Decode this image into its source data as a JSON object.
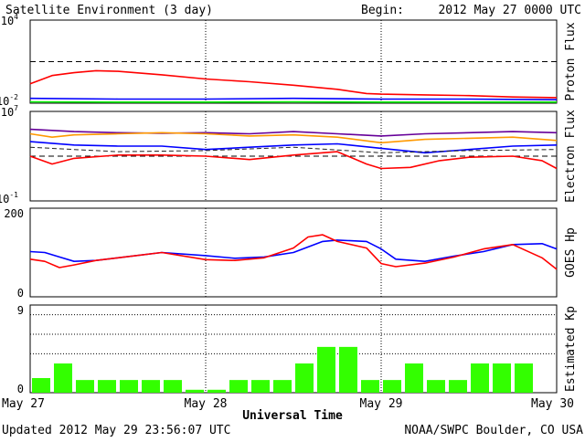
{
  "header": {
    "title": "Satellite Environment (3 day)",
    "begin_label": "Begin:",
    "begin_value": "2012 May 27 0000 UTC"
  },
  "footer": {
    "updated": "Updated 2012 May 29 23:56:07 UTC",
    "credit": "NOAA/SWPC Boulder, CO USA",
    "xaxis_title": "Universal Time"
  },
  "x_ticks": [
    "May 27",
    "May 28",
    "May 29",
    "May 30"
  ],
  "colors": {
    "red": "#ff0000",
    "blue": "#0000ff",
    "green": "#00ff00",
    "purple": "#660099",
    "orange": "#ff9900",
    "kp_bar": "#33ff00"
  },
  "chart_data": [
    {
      "type": "line",
      "name": "proton",
      "ylabel": "Proton Flux",
      "yscale": "log",
      "ylim_exp": [
        -2,
        4
      ],
      "y_tick_base": "10",
      "y_tick_exps": [
        "4",
        "-2"
      ],
      "threshold_exp": 1,
      "xlim_hours": [
        0,
        72
      ],
      "series": [
        {
          "color": "red",
          "x": [
            0,
            3,
            6,
            9,
            12,
            18,
            24,
            30,
            36,
            42,
            46,
            48,
            54,
            60,
            66,
            72
          ],
          "y_exp": [
            -0.6,
            0.0,
            0.2,
            0.35,
            0.3,
            0.05,
            -0.25,
            -0.45,
            -0.7,
            -1.0,
            -1.3,
            -1.35,
            -1.4,
            -1.45,
            -1.55,
            -1.6
          ]
        },
        {
          "color": "blue",
          "x": [
            0,
            12,
            24,
            36,
            48,
            60,
            72
          ],
          "y_exp": [
            -1.65,
            -1.7,
            -1.7,
            -1.65,
            -1.7,
            -1.7,
            -1.75
          ]
        },
        {
          "color": "green",
          "x": [
            0,
            12,
            24,
            36,
            48,
            60,
            72
          ],
          "y_exp": [
            -1.9,
            -1.92,
            -1.92,
            -1.9,
            -1.92,
            -1.92,
            -1.92
          ]
        }
      ]
    },
    {
      "type": "line",
      "name": "electron",
      "ylabel": "Electron Flux",
      "yscale": "log",
      "ylim_exp": [
        -1,
        7
      ],
      "y_tick_base": "10",
      "y_tick_exps": [
        "7",
        "-1"
      ],
      "threshold_exp": 3,
      "xlim_hours": [
        0,
        72
      ],
      "series": [
        {
          "color": "purple",
          "x": [
            0,
            6,
            12,
            18,
            24,
            30,
            36,
            42,
            48,
            54,
            60,
            66,
            72
          ],
          "y_exp": [
            5.4,
            5.2,
            5.1,
            5.05,
            5.1,
            5.0,
            5.2,
            5.0,
            4.8,
            5.0,
            5.1,
            5.2,
            5.1
          ]
        },
        {
          "color": "orange",
          "x": [
            0,
            3,
            6,
            12,
            18,
            24,
            30,
            36,
            42,
            48,
            54,
            60,
            66,
            72
          ],
          "y_exp": [
            5.0,
            4.7,
            4.9,
            5.0,
            5.1,
            5.0,
            4.8,
            4.9,
            4.7,
            4.2,
            4.5,
            4.6,
            4.7,
            4.4
          ]
        },
        {
          "color": "blue",
          "x": [
            0,
            6,
            12,
            18,
            24,
            30,
            36,
            42,
            48,
            54,
            60,
            66,
            72
          ],
          "y_exp": [
            4.3,
            4.0,
            3.9,
            3.9,
            3.6,
            3.8,
            4.0,
            4.1,
            3.7,
            3.3,
            3.6,
            3.9,
            4.0
          ]
        },
        {
          "color": "red",
          "x": [
            0,
            3,
            6,
            12,
            18,
            24,
            30,
            36,
            42,
            46,
            48,
            52,
            56,
            60,
            66,
            70,
            72
          ],
          "y_exp": [
            3.0,
            2.3,
            2.8,
            3.1,
            3.1,
            3.0,
            2.7,
            3.1,
            3.4,
            2.3,
            1.9,
            2.0,
            2.6,
            2.9,
            3.0,
            2.6,
            1.9
          ]
        },
        {
          "color": "dark",
          "x": [
            0,
            6,
            12,
            24,
            36,
            48,
            60,
            72
          ],
          "y_exp": [
            3.8,
            3.6,
            3.4,
            3.5,
            3.8,
            3.3,
            3.5,
            3.6
          ]
        }
      ]
    },
    {
      "type": "line",
      "name": "goes_hp",
      "ylabel": "GOES Hp",
      "ylim": [
        0,
        200
      ],
      "y_ticks": [
        "200",
        "0"
      ],
      "xlim_hours": [
        0,
        72
      ],
      "series": [
        {
          "color": "blue",
          "x": [
            0,
            2,
            4,
            6,
            9,
            12,
            18,
            24,
            28,
            32,
            36,
            40,
            42,
            46,
            48,
            50,
            54,
            58,
            62,
            66,
            70,
            72
          ],
          "y": [
            102,
            100,
            90,
            80,
            82,
            88,
            100,
            93,
            87,
            90,
            100,
            125,
            128,
            125,
            108,
            85,
            80,
            92,
            102,
            118,
            120,
            108
          ]
        },
        {
          "color": "red",
          "x": [
            0,
            2,
            4,
            6,
            9,
            12,
            18,
            24,
            28,
            32,
            36,
            38,
            40,
            42,
            46,
            48,
            50,
            54,
            58,
            62,
            66,
            70,
            72
          ],
          "y": [
            85,
            80,
            66,
            72,
            82,
            88,
            100,
            84,
            82,
            88,
            110,
            135,
            140,
            125,
            110,
            75,
            68,
            76,
            90,
            108,
            118,
            88,
            62
          ]
        }
      ]
    },
    {
      "type": "bar",
      "name": "kp",
      "ylabel": "Estimated Kp",
      "ylim": [
        0,
        9
      ],
      "y_ticks": [
        "9",
        "0"
      ],
      "dotted_levels": [
        4,
        6,
        8
      ],
      "interval_hours": 3,
      "values": [
        1.5,
        3,
        1.3,
        1.3,
        1.3,
        1.3,
        1.3,
        0.3,
        0.3,
        1.3,
        1.3,
        1.3,
        3,
        4.7,
        4.7,
        1.3,
        1.3,
        3,
        1.3,
        1.3,
        3,
        3,
        3
      ]
    }
  ]
}
